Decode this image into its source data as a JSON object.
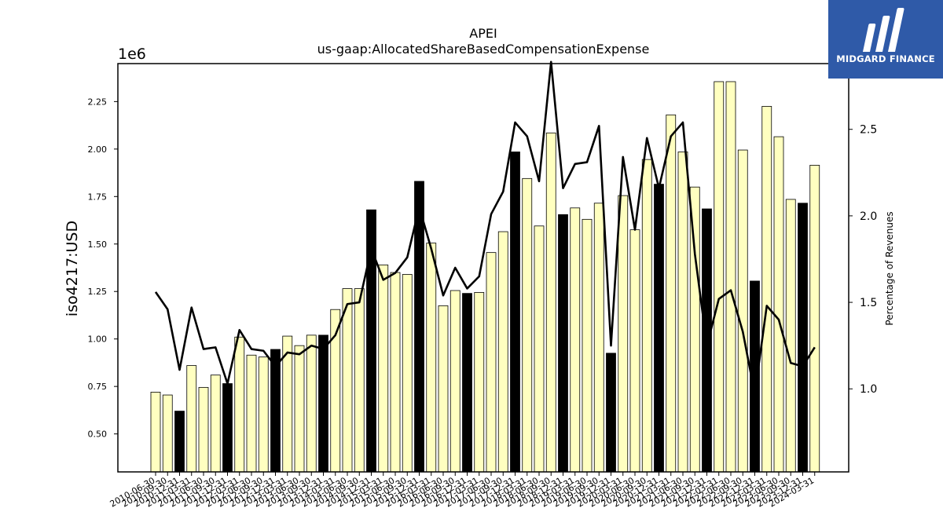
{
  "logo": {
    "text": "MIDGARD FINANCE",
    "color": "#2f5aa8"
  },
  "chart_data": {
    "type": "bar",
    "title": "APEI",
    "subtitle": "us-gaap:AllocatedShareBasedCompensationExpense",
    "ylabel": "iso4217:USD",
    "y_offset_label": "1e6",
    "y2label": "Percentage of Revenues",
    "ylim": [
      300000,
      2450000
    ],
    "y2lim": [
      0.52,
      2.88
    ],
    "yticks": [
      "0.50",
      "0.75",
      "1.00",
      "1.25",
      "1.50",
      "1.75",
      "2.00",
      "2.25"
    ],
    "y2ticks": [
      "1.0",
      "1.5",
      "2.0",
      "2.5"
    ],
    "colors": {
      "quarterly_bar": "#ffffc0",
      "annual_bar": "#000000",
      "line": "#000000"
    },
    "categories": [
      "2010-06-30",
      "2010-09-30",
      "2010-12-31",
      "2011-03-31",
      "2011-06-30",
      "2011-09-30",
      "2011-12-31",
      "2012-03-31",
      "2012-06-30",
      "2012-09-30",
      "2012-12-31",
      "2013-03-31",
      "2013-06-30",
      "2013-09-30",
      "2013-12-31",
      "2014-03-31",
      "2014-06-30",
      "2014-09-30",
      "2014-12-31",
      "2015-03-31",
      "2015-06-30",
      "2015-09-30",
      "2015-12-31",
      "2016-03-31",
      "2016-06-30",
      "2016-09-30",
      "2016-12-31",
      "2017-03-31",
      "2017-06-30",
      "2017-09-30",
      "2017-12-31",
      "2018-03-31",
      "2018-06-30",
      "2018-09-30",
      "2018-12-31",
      "2019-03-31",
      "2019-06-30",
      "2019-09-30",
      "2019-12-31",
      "2020-03-31",
      "2020-06-30",
      "2020-09-30",
      "2020-12-31",
      "2021-03-31",
      "2021-06-30",
      "2021-09-30",
      "2021-12-31",
      "2022-03-31",
      "2022-06-30",
      "2022-09-30",
      "2022-12-31",
      "2023-03-31",
      "2023-06-30",
      "2023-09-30",
      "2023-12-31",
      "2024-03-31"
    ],
    "values": [
      720000,
      705000,
      620000,
      860000,
      745000,
      810000,
      765000,
      1010000,
      915000,
      905000,
      945000,
      1015000,
      965000,
      1020000,
      1020000,
      1155000,
      1265000,
      1265000,
      1680000,
      1390000,
      1350000,
      1340000,
      1830000,
      1505000,
      1175000,
      1255000,
      1240000,
      1245000,
      1455000,
      1565000,
      1985000,
      1845000,
      1595000,
      2085000,
      1655000,
      1690000,
      1630000,
      1715000,
      925000,
      1755000,
      1575000,
      1945000,
      1815000,
      2180000,
      1985000,
      1800000,
      1685000,
      2355000,
      2355000,
      1995000,
      1305000,
      2225000,
      2065000,
      1735000,
      1715000,
      1915000
    ],
    "annual": [
      false,
      false,
      true,
      false,
      false,
      false,
      true,
      false,
      false,
      false,
      true,
      false,
      false,
      false,
      true,
      false,
      false,
      false,
      true,
      false,
      false,
      false,
      true,
      false,
      false,
      false,
      true,
      false,
      false,
      false,
      true,
      false,
      false,
      false,
      true,
      false,
      false,
      false,
      true,
      false,
      false,
      false,
      true,
      false,
      false,
      false,
      true,
      false,
      false,
      false,
      true,
      false,
      false,
      false,
      true,
      false
    ],
    "series": [
      {
        "values": [
          1.56,
          1.46,
          1.11,
          1.47,
          1.23,
          1.24,
          1.03,
          1.34,
          1.23,
          1.22,
          1.13,
          1.21,
          1.2,
          1.25,
          1.23,
          1.31,
          1.49,
          1.5,
          1.81,
          1.63,
          1.67,
          1.76,
          2.05,
          1.81,
          1.54,
          1.7,
          1.58,
          1.65,
          2.01,
          2.14,
          2.54,
          2.46,
          2.2,
          2.89,
          2.16,
          2.3,
          2.31,
          2.52,
          1.25,
          2.34,
          1.92,
          2.45,
          2.16,
          2.46,
          2.54,
          1.78,
          1.25,
          1.52,
          1.57,
          1.33,
          0.97,
          1.48,
          1.4,
          1.15,
          1.13,
          1.24
        ]
      }
    ]
  }
}
